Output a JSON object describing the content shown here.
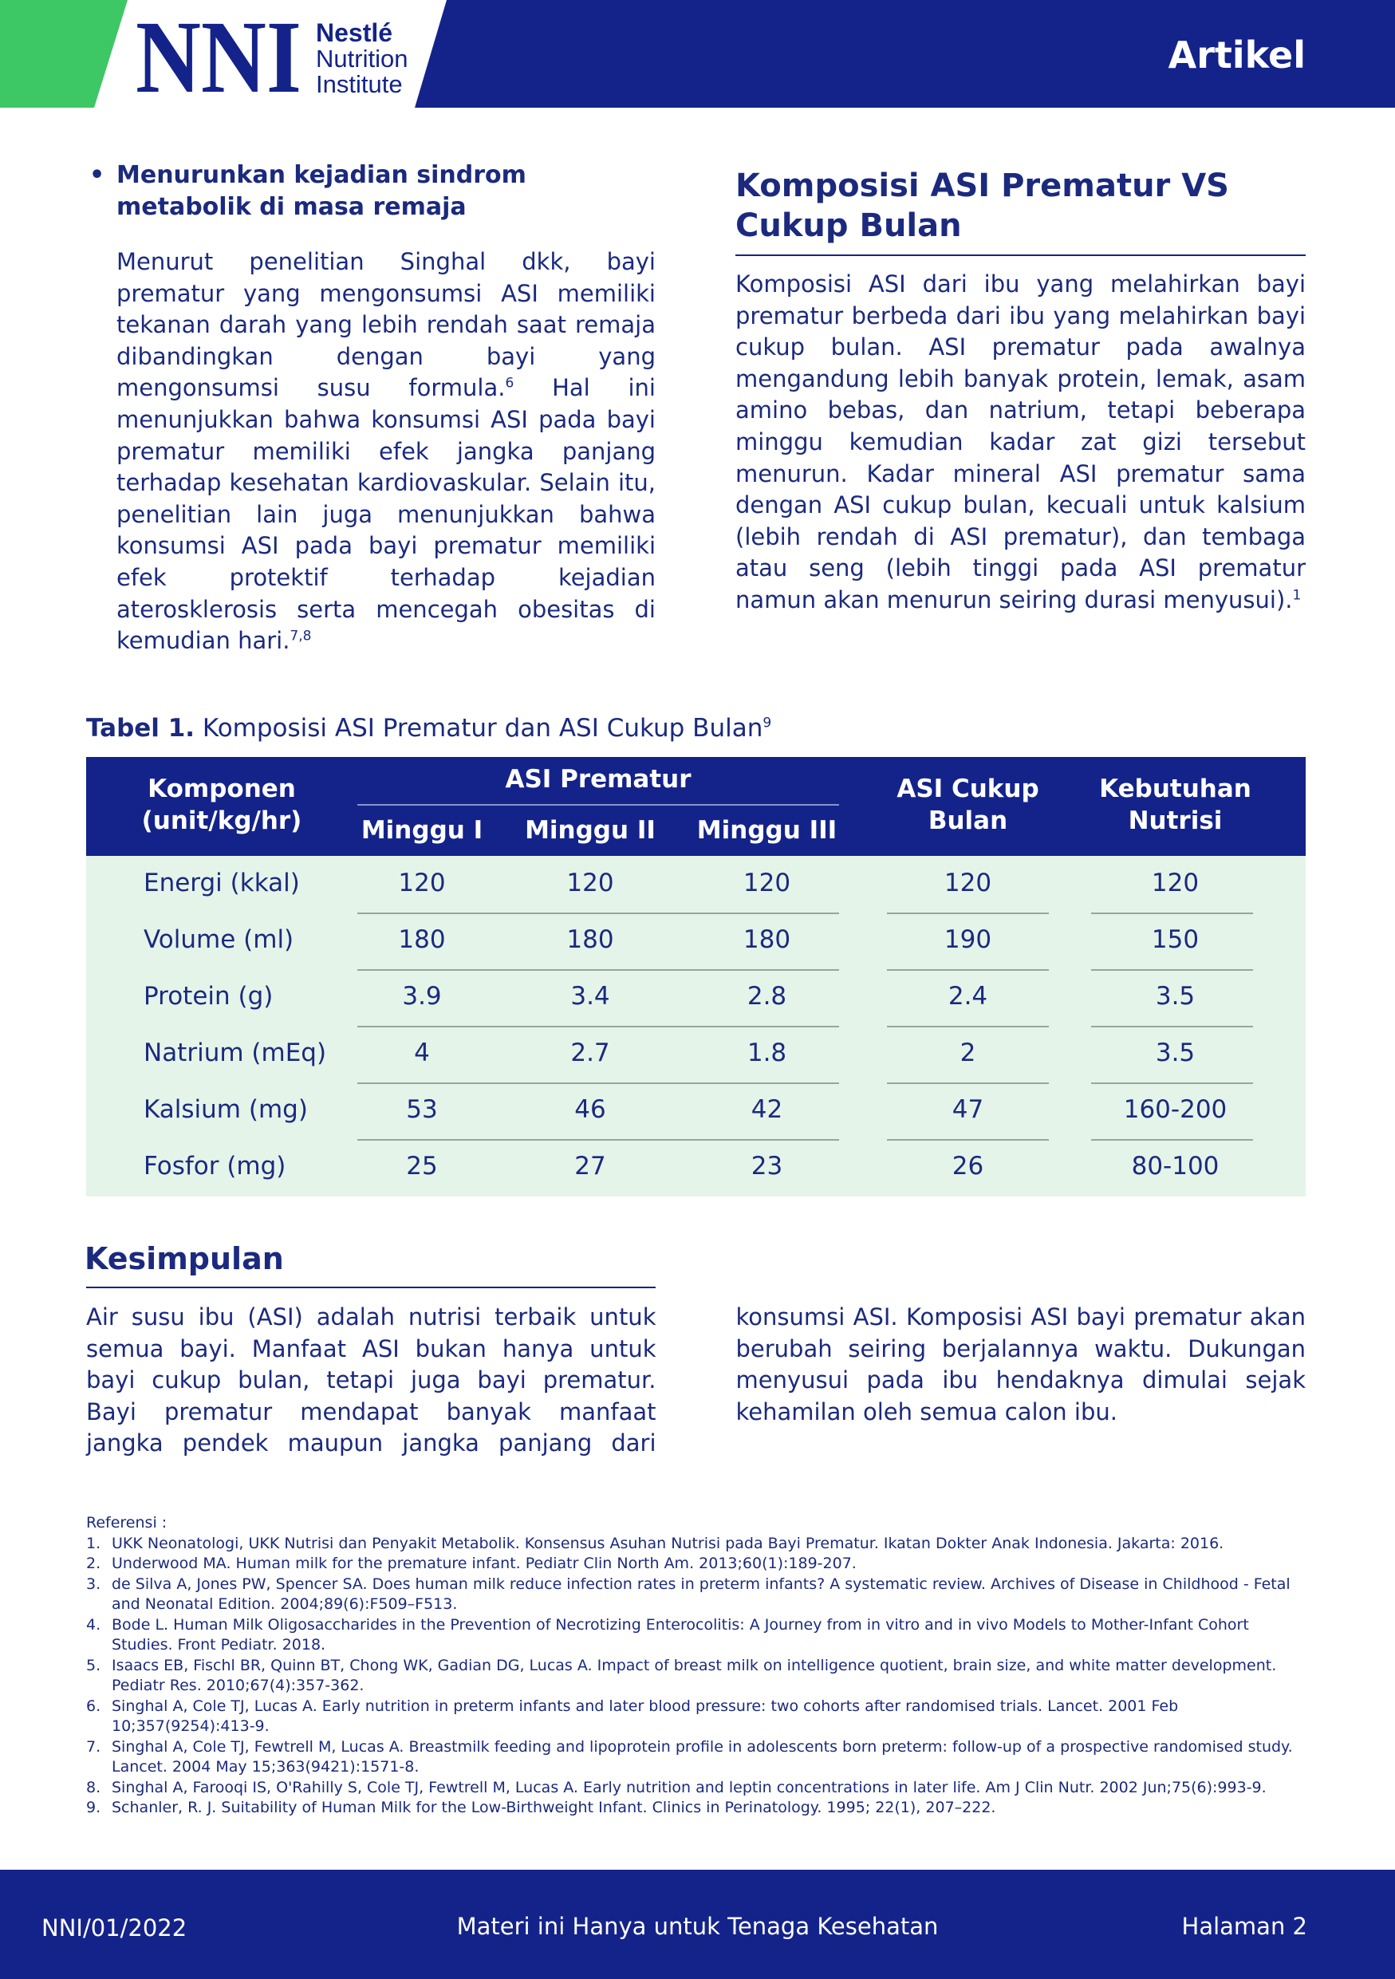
{
  "header": {
    "logo_mark": "NNI",
    "logo_line1": "Nestlé",
    "logo_line2": "Nutrition",
    "logo_line3": "Institute",
    "label": "Artikel"
  },
  "left": {
    "bullet_title": "Menurunkan kejadian sindrom metabolik di masa remaja",
    "text_1": "Menurut penelitian Singhal dkk, bayi prematur yang mengonsumsi ASI memiliki tekanan darah yang lebih rendah saat remaja dibandingkan dengan bayi yang mengonsumsi susu formula.",
    "sup_1": "6",
    "text_2": " Hal ini menunjukkan bahwa konsumsi ASI pada bayi prematur memiliki efek jangka panjang terhadap kesehatan kardiovaskular. Selain itu, penelitian lain juga menunjukkan bahwa konsumsi ASI pada bayi prematur memiliki efek protektif terhadap kejadian aterosklerosis serta mencegah obesitas di kemudian hari.",
    "sup_2": "7,8"
  },
  "right": {
    "heading": "Komposisi ASI Prematur VS Cukup Bulan",
    "text": "Komposisi ASI dari ibu yang melahirkan bayi prematur berbeda dari ibu yang melahirkan bayi cukup bulan. ASI prematur pada awalnya mengandung lebih banyak protein, lemak, asam amino bebas, dan natrium, tetapi beberapa minggu kemudian kadar zat gizi tersebut menurun. Kadar mineral ASI prematur sama dengan ASI cukup bulan, kecuali untuk kalsium (lebih rendah di ASI prematur), dan tembaga atau seng (lebih tinggi pada ASI prematur namun akan menurun seiring durasi menyusui).",
    "sup": "1"
  },
  "table": {
    "label": "Tabel 1.",
    "caption": " Komposisi ASI Prematur dan ASI Cukup Bulan",
    "caption_sup": "9",
    "header_komponen": [
      "Komponen",
      "(unit/kg/hr)"
    ],
    "header_group": "ASI Prematur",
    "header_sub": [
      "Minggu I",
      "Minggu II",
      "Minggu III"
    ],
    "header_cukup": [
      "ASI Cukup",
      "Bulan"
    ],
    "header_kebutuhan": [
      "Kebutuhan",
      "Nutrisi"
    ],
    "rows": [
      [
        "Energi (kkal)",
        "120",
        "120",
        "120",
        "120",
        "120"
      ],
      [
        "Volume (ml)",
        "180",
        "180",
        "180",
        "190",
        "150"
      ],
      [
        "Protein (g)",
        "3.9",
        "3.4",
        "2.8",
        "2.4",
        "3.5"
      ],
      [
        "Natrium (mEq)",
        "4",
        "2.7",
        "1.8",
        "2",
        "3.5"
      ],
      [
        "Kalsium (mg)",
        "53",
        "46",
        "42",
        "47",
        "160-200"
      ],
      [
        "Fosfor (mg)",
        "25",
        "27",
        "23",
        "26",
        "80-100"
      ]
    ]
  },
  "conclusion": {
    "heading": "Kesimpulan",
    "text": "Air susu ibu (ASI) adalah nutrisi terbaik untuk semua bayi. Manfaat ASI bukan hanya untuk bayi cukup bulan, tetapi juga bayi prematur. Bayi prematur mendapat banyak manfaat jangka pendek maupun jangka panjang dari konsumsi ASI. Komposisi ASI bayi prematur akan berubah seiring berjalannya waktu. Dukungan menyusui pada ibu hendaknya dimulai sejak kehamilan oleh semua calon ibu."
  },
  "references": {
    "title": "Referensi :",
    "items": [
      {
        "num": "1.",
        "text": "UKK Neonatologi, UKK Nutrisi dan Penyakit Metabolik. Konsensus Asuhan Nutrisi pada Bayi Prematur. Ikatan Dokter Anak Indonesia. Jakarta: 2016."
      },
      {
        "num": "2.",
        "text": "Underwood MA. Human milk for the premature infant. Pediatr Clin North Am. 2013;60(1):189-207."
      },
      {
        "num": "3.",
        "text": "de Silva A, Jones PW, Spencer SA. Does human milk reduce infection rates in preterm infants? A systematic review. Archives of Disease in Childhood - Fetal and Neonatal Edition. 2004;89(6):F509–F513."
      },
      {
        "num": "4.",
        "text": "Bode L. Human Milk Oligosaccharides in the Prevention of Necrotizing Enterocolitis: A Journey from in vitro and in vivo Models to Mother-Infant Cohort Studies. Front Pediatr. 2018."
      },
      {
        "num": "5.",
        "text": "Isaacs EB, Fischl BR, Quinn BT, Chong WK, Gadian DG, Lucas A. Impact of breast milk on intelligence quotient, brain size, and white matter development. Pediatr Res. 2010;67(4):357-362."
      },
      {
        "num": "6.",
        "text": "Singhal A, Cole TJ, Lucas A. Early nutrition in preterm infants and later blood pressure: two cohorts after randomised trials. Lancet. 2001 Feb 10;357(9254):413-9."
      },
      {
        "num": "7.",
        "text": "Singhal A, Cole TJ, Fewtrell M, Lucas A. Breastmilk feeding and lipoprotein profile in adolescents born preterm: follow-up of a prospective randomised study. Lancet. 2004 May 15;363(9421):1571-8."
      },
      {
        "num": "8.",
        "text": "Singhal A, Farooqi IS, O'Rahilly S, Cole TJ, Fewtrell M, Lucas A. Early nutrition and leptin concentrations in later life. Am J Clin Nutr. 2002 Jun;75(6):993-9."
      },
      {
        "num": "9.",
        "text": "Schanler, R. J. Suitability of Human Milk for the Low-Birthweight Infant. Clinics in Perinatology. 1995; 22(1), 207–222."
      }
    ]
  },
  "footer": {
    "code": "NNI/01/2022",
    "note": "Materi ini Hanya untuk Tenaga Kesehatan",
    "page": "Halaman 2"
  }
}
